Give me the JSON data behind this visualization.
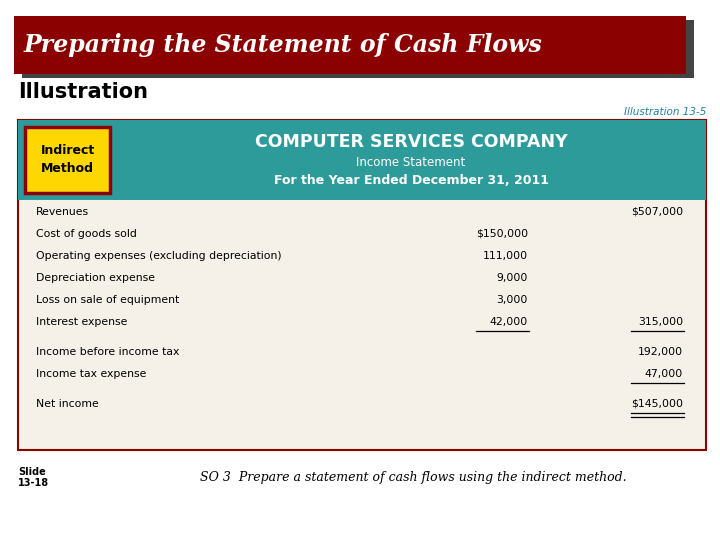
{
  "title_text": "Preparing the Statement of Cash Flows",
  "title_bg": "#8B0000",
  "title_fg": "#FFFFFF",
  "illustration_label": "Illustration",
  "illustration_ref": "Illustration 13-5",
  "illustration_ref_color": "#1F7FA8",
  "indirect_label": "Indirect\nMethod",
  "indirect_bg": "#FFD700",
  "indirect_border": "#8B0000",
  "header_bg": "#2E9B9B",
  "company_name": "COMPUTER SERVICES COMPANY",
  "subtitle1": "Income Statement",
  "subtitle2": "For the Year Ended December 31, 2011",
  "table_bg": "#F5F0E8",
  "table_border": "#8B0000",
  "rows": [
    {
      "label": "Revenues",
      "col1": "",
      "col2": "$507,000",
      "ul1": false,
      "ul2": false,
      "bold2": false,
      "gap_before": false
    },
    {
      "label": "Cost of goods sold",
      "col1": "$150,000",
      "col2": "",
      "ul1": false,
      "ul2": false,
      "bold2": false,
      "gap_before": false
    },
    {
      "label": "Operating expenses (excluding depreciation)",
      "col1": "111,000",
      "col2": "",
      "ul1": false,
      "ul2": false,
      "bold2": false,
      "gap_before": false
    },
    {
      "label": "Depreciation expense",
      "col1": "9,000",
      "col2": "",
      "ul1": false,
      "ul2": false,
      "bold2": false,
      "gap_before": false
    },
    {
      "label": "Loss on sale of equipment",
      "col1": "3,000",
      "col2": "",
      "ul1": false,
      "ul2": false,
      "bold2": false,
      "gap_before": false
    },
    {
      "label": "Interest expense",
      "col1": "42,000",
      "col2": "315,000",
      "ul1": true,
      "ul2": true,
      "bold2": false,
      "gap_before": false
    },
    {
      "label": "Income before income tax",
      "col1": "",
      "col2": "192,000",
      "ul1": false,
      "ul2": false,
      "bold2": false,
      "gap_before": true
    },
    {
      "label": "Income tax expense",
      "col1": "",
      "col2": "47,000",
      "ul1": false,
      "ul2": true,
      "bold2": false,
      "gap_before": false
    },
    {
      "label": "Net income",
      "col1": "",
      "col2": "$145,000",
      "ul1": false,
      "ul2": false,
      "bold2": false,
      "gap_before": true
    }
  ],
  "slide_text1": "Slide",
  "slide_text2": "13-18",
  "footer_text": "SO 3  Prepare a statement of cash flows using the indirect method."
}
